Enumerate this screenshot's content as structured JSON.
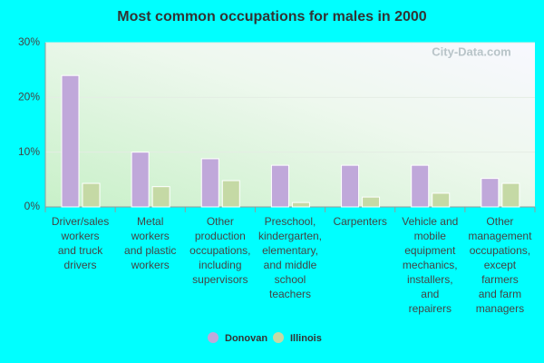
{
  "chart_data": {
    "type": "bar",
    "title": "Most common occupations for males in 2000",
    "watermark": "City-Data.com",
    "categories": [
      "Driver/sales\nworkers\nand truck\ndrivers",
      "Metal\nworkers\nand plastic\nworkers",
      "Other\nproduction\noccupations,\nincluding\nsupervisors",
      "Preschool,\nkindergarten,\nelementary,\nand middle\nschool\nteachers",
      "Carpenters",
      "Vehicle and\nmobile\nequipment\nmechanics,\ninstallers,\nand\nrepairers",
      "Other\nmanagement\noccupations,\nexcept\nfarmers\nand farm\nmanagers"
    ],
    "series": [
      {
        "name": "Donovan",
        "color": "#c0a8da",
        "values": [
          24,
          10,
          8.8,
          7.6,
          7.6,
          7.6,
          5.2
        ]
      },
      {
        "name": "Illinois",
        "color": "#c5d9a5",
        "values": [
          4.3,
          3.7,
          4.8,
          0.8,
          1.8,
          2.5,
          4.3
        ]
      }
    ],
    "ylim": [
      0,
      30
    ],
    "yticks": [
      {
        "value": 0,
        "label": "0%"
      },
      {
        "value": 10,
        "label": "10%"
      },
      {
        "value": 20,
        "label": "20%"
      },
      {
        "value": 30,
        "label": "30%"
      }
    ],
    "grid": true,
    "legend": "bottom"
  }
}
